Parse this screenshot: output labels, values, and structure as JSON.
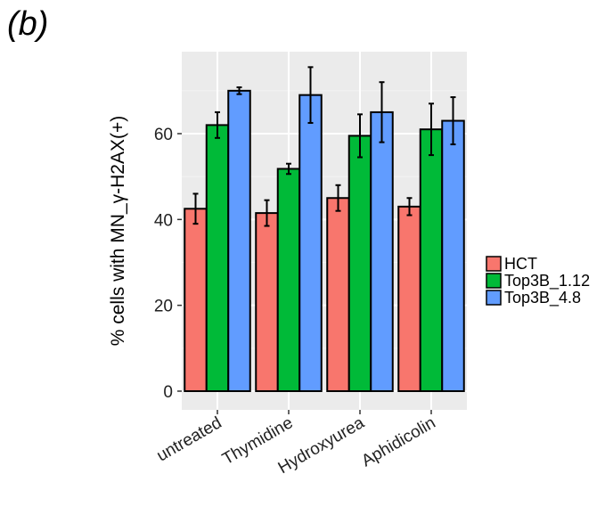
{
  "panel_label": "(b)",
  "chart_data": {
    "type": "bar",
    "categories": [
      "untreated",
      "Thymidine",
      "Hydroxyurea",
      "Aphidicolin"
    ],
    "series": [
      {
        "name": "HCT",
        "color": "#F8766D",
        "values": [
          42.5,
          41.5,
          45.0,
          43.0
        ],
        "errors": [
          3.5,
          3.0,
          3.0,
          2.0
        ]
      },
      {
        "name": "Top3B_1.12",
        "color": "#00BA38",
        "values": [
          62.0,
          51.8,
          59.5,
          61.0
        ],
        "errors": [
          3.0,
          1.2,
          5.0,
          6.0
        ]
      },
      {
        "name": "Top3B_4.8",
        "color": "#619CFF",
        "values": [
          70.0,
          69.0,
          65.0,
          63.0
        ],
        "errors": [
          0.8,
          6.5,
          7.0,
          5.5
        ]
      }
    ],
    "ylabel": "% cells with MN_γ-H2AX(+)",
    "xlabel": "",
    "ylim": [
      0,
      80
    ],
    "yticks": [
      0,
      20,
      40,
      60
    ],
    "legend_position": "right",
    "grid": true
  }
}
